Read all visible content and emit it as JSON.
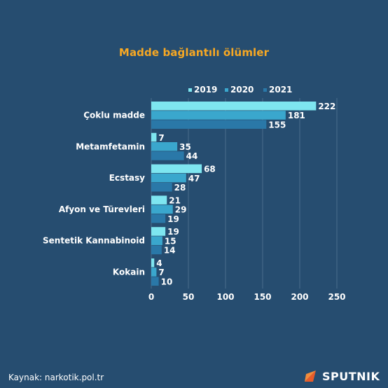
{
  "colors": {
    "background": "#264d70",
    "title": "#f7a823",
    "grid": "#4a6d8c",
    "text": "#ffffff",
    "series": [
      "#7ee6f0",
      "#3aa7cd",
      "#2a78a8"
    ]
  },
  "source": "Kaynak: narkotik.pol.tr",
  "brand": {
    "name": "SPUTNIK",
    "logo_icon": "sputnik-logo-icon"
  },
  "chart_data": {
    "type": "bar",
    "orientation": "horizontal",
    "title": "Madde bağlantılı ölümler",
    "categories": [
      "Çoklu madde",
      "Metamfetamin",
      "Ecstasy",
      "Afyon ve Türevleri",
      "Sentetik Kannabinoid",
      "Kokain"
    ],
    "series": [
      {
        "name": "2019",
        "values": [
          222,
          7,
          68,
          21,
          19,
          4
        ]
      },
      {
        "name": "2020",
        "values": [
          181,
          35,
          47,
          29,
          15,
          7
        ]
      },
      {
        "name": "2021",
        "values": [
          155,
          44,
          28,
          19,
          14,
          10
        ]
      }
    ],
    "xlim": [
      0,
      250
    ],
    "xticks": [
      "0",
      "50",
      "100",
      "150",
      "200",
      "250"
    ],
    "grid": true,
    "legend": "top-right",
    "data_labels": true
  }
}
